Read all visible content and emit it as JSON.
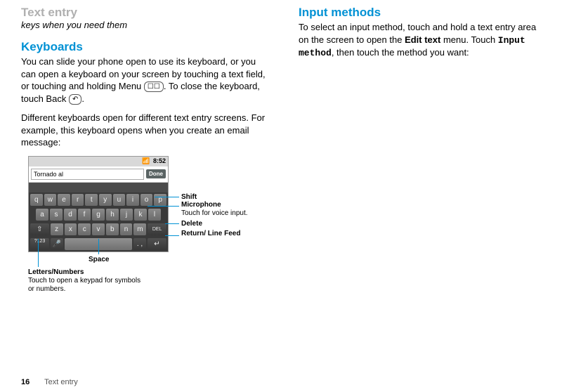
{
  "left": {
    "title": "Text entry",
    "subtitle": "keys when you need them",
    "h2": "Keyboards",
    "p1a": "You can slide your phone open to use its keyboard, or you can open a keyboard on your screen by touching a text field, or touching and holding Menu ",
    "menuIcon": "☐☐",
    "p1b": ". To close the keyboard, touch Back ",
    "backIcon": "↶",
    "p1c": ".",
    "p2": "Different keyboards open for different text entry screens. For example, this keyboard opens when you create an email message:"
  },
  "right": {
    "h2": "Input methods",
    "p1a": "To select an input method, touch and hold a text entry area on the screen to open the ",
    "b1": "Edit text",
    "p1b": " menu. Touch ",
    "b2": "Input method",
    "p1c": ", then touch the method you want:"
  },
  "kb": {
    "time": "8:52",
    "typed": "Tornado al",
    "done": "Done",
    "row1": [
      "q",
      "w",
      "e",
      "r",
      "t",
      "y",
      "u",
      "i",
      "o",
      "p"
    ],
    "row2": [
      "a",
      "s",
      "d",
      "f",
      "g",
      "h",
      "j",
      "k",
      "l"
    ],
    "row3": [
      "z",
      "x",
      "c",
      "v",
      "b",
      "n",
      "m"
    ],
    "shift": "⇧",
    "del": "DEL",
    "mode": "?123",
    "mic": "🎤",
    "punct": ". ,",
    "ret": "↵"
  },
  "callouts": {
    "shift": "Shift",
    "mic": "Microphone",
    "micDesc": "Touch for voice input.",
    "del": "Delete",
    "ret": "Return/ Line Feed",
    "space": "Space",
    "letters": "Letters/Numbers",
    "lettersDesc": "Touch to open a keypad for symbols or numbers."
  },
  "footer": {
    "page": "16",
    "section": "Text entry"
  }
}
